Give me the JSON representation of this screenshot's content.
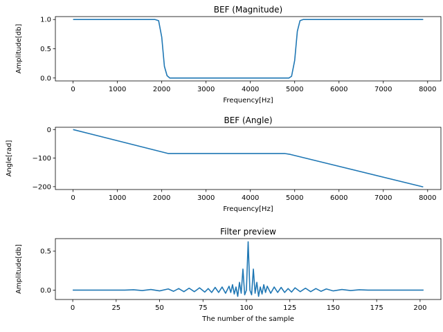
{
  "chart_data": [
    {
      "type": "line",
      "title": "BEF (Magnitude)",
      "xlabel": "Frequency[Hz]",
      "ylabel": "Amplitude[db]",
      "xlim": [
        -400,
        8300
      ],
      "ylim": [
        -0.05,
        1.05
      ],
      "xticks": [
        0,
        1000,
        2000,
        3000,
        4000,
        5000,
        6000,
        7000,
        8000
      ],
      "yticks": [
        0.0,
        0.5,
        1.0
      ],
      "ytick_labels": [
        "0.0",
        "0.5",
        "1.0"
      ],
      "color": "#1f77b4",
      "series": [
        {
          "x": [
            0,
            1850,
            1930,
            2000,
            2060,
            2120,
            2180,
            4800,
            4870,
            4930,
            5000,
            5060,
            5120,
            5190,
            7900
          ],
          "y": [
            1.0,
            1.0,
            0.98,
            0.7,
            0.2,
            0.04,
            0.0,
            0.0,
            0.0,
            0.03,
            0.3,
            0.8,
            0.98,
            1.0,
            1.0
          ]
        }
      ]
    },
    {
      "type": "line",
      "title": "BEF (Angle)",
      "xlabel": "Frequency[Hz]",
      "ylabel": "Angle[rad]",
      "xlim": [
        -400,
        8300
      ],
      "ylim": [
        -210,
        8
      ],
      "xticks": [
        0,
        1000,
        2000,
        3000,
        4000,
        5000,
        6000,
        7000,
        8000
      ],
      "yticks": [
        0,
        -100,
        -200
      ],
      "ytick_labels": [
        "0",
        "−100",
        "−200"
      ],
      "color": "#1f77b4",
      "series": [
        {
          "x": [
            0,
            2150,
            4780,
            4900,
            7900
          ],
          "y": [
            0,
            -84,
            -84,
            -87,
            -201
          ]
        }
      ]
    },
    {
      "type": "line",
      "title": "Filter preview",
      "xlabel": "The number of the sample",
      "ylabel": "Amplitude[db]",
      "xlim": [
        -10,
        212
      ],
      "ylim": [
        -0.12,
        0.66
      ],
      "xticks": [
        0,
        25,
        50,
        75,
        100,
        125,
        150,
        175,
        200
      ],
      "yticks": [
        0.0,
        0.5
      ],
      "ytick_labels": [
        "0.0",
        "0.5"
      ],
      "color": "#1f77b4",
      "series": [
        {
          "x": [
            0,
            30,
            35,
            40,
            45,
            50,
            55,
            58,
            61,
            64,
            67,
            70,
            73,
            76,
            78,
            80,
            82,
            84,
            86,
            88,
            90,
            91,
            92,
            93,
            94,
            95,
            96,
            97,
            98,
            99,
            100,
            101,
            102,
            103,
            104,
            105,
            106,
            107,
            108,
            109,
            110,
            111,
            112,
            114,
            116,
            118,
            120,
            122,
            124,
            126,
            128,
            131,
            134,
            137,
            140,
            143,
            146,
            150,
            155,
            160,
            165,
            170,
            202
          ],
          "y": [
            0,
            0,
            0.005,
            -0.005,
            0.008,
            -0.01,
            0.015,
            -0.015,
            0.02,
            -0.02,
            0.025,
            -0.02,
            0.03,
            -0.025,
            0.02,
            -0.03,
            0.035,
            -0.03,
            0.04,
            -0.04,
            0.05,
            -0.03,
            0.07,
            -0.05,
            0.04,
            -0.08,
            0.1,
            -0.04,
            0.27,
            -0.06,
            0.0,
            0.62,
            0.0,
            -0.06,
            0.27,
            -0.04,
            0.1,
            -0.08,
            0.04,
            -0.05,
            0.07,
            -0.03,
            0.05,
            -0.04,
            0.04,
            -0.03,
            0.035,
            -0.03,
            0.02,
            -0.025,
            0.03,
            -0.02,
            0.025,
            -0.02,
            0.02,
            -0.015,
            0.015,
            -0.01,
            0.008,
            -0.005,
            0.005,
            0,
            0
          ]
        }
      ]
    }
  ]
}
